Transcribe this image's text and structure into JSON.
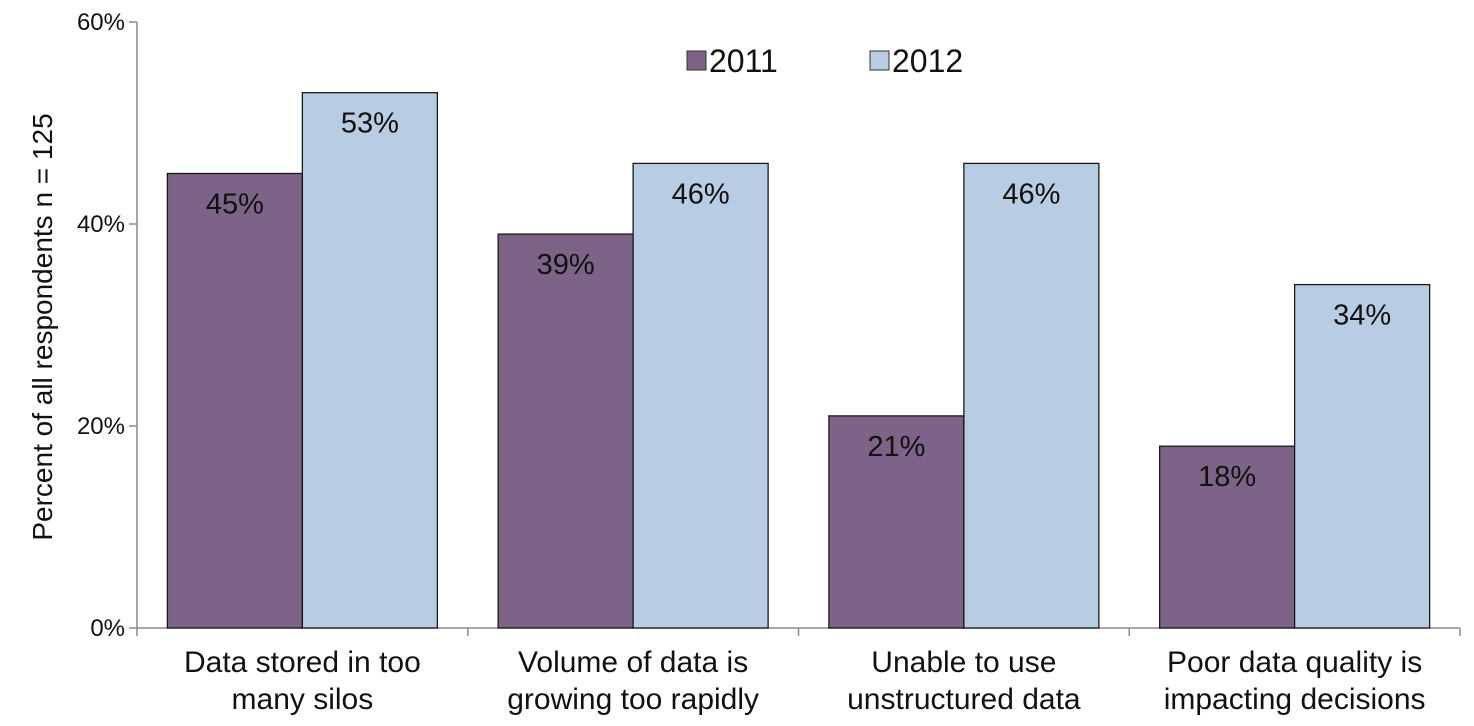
{
  "chart_data": {
    "type": "bar",
    "ylabel": "Percent of all respondents n = 125",
    "xlabel": "",
    "ylim": [
      0,
      60
    ],
    "y_ticks": [
      0,
      20,
      40,
      60
    ],
    "y_tick_format": "percent",
    "grid": false,
    "legend_position": "top-center",
    "categories": [
      [
        "Data stored in too",
        "many silos"
      ],
      [
        "Volume of data is",
        "growing too rapidly"
      ],
      [
        "Unable to use",
        "unstructured data"
      ],
      [
        "Poor data quality is",
        "impacting decisions"
      ]
    ],
    "series": [
      {
        "name": "2011",
        "color": "#7e6389",
        "values": [
          45,
          39,
          21,
          18
        ],
        "labels": [
          "45%",
          "39%",
          "21%",
          "18%"
        ]
      },
      {
        "name": "2012",
        "color": "#b8cde3",
        "values": [
          53,
          46,
          46,
          34
        ],
        "labels": [
          "53%",
          "46%",
          "46%",
          "34%"
        ]
      }
    ]
  }
}
